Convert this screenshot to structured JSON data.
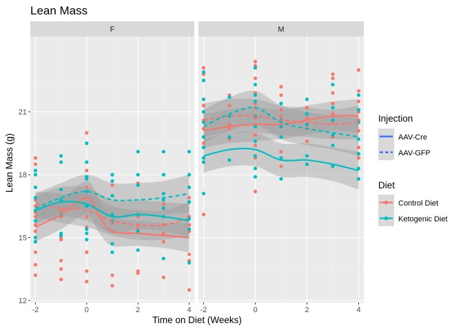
{
  "chart_data": {
    "type": "scatter",
    "title": "Lean Mass",
    "xlabel": "Time on Diet (Weeks)",
    "ylabel": "Lean Mass (g)",
    "xlim": [
      -2.2,
      4.2
    ],
    "ylim": [
      11.9,
      24.6
    ],
    "x_ticks": [
      -2,
      0,
      2,
      4
    ],
    "y_ticks": [
      12,
      15,
      18,
      21
    ],
    "grid": true,
    "facets": [
      "F",
      "M"
    ],
    "legend_position": "right",
    "legend_injection": {
      "title": "Injection",
      "items": [
        {
          "label": "AAV-Cre",
          "linetype": "solid"
        },
        {
          "label": "AAV-GFP",
          "linetype": "dashed"
        }
      ]
    },
    "legend_diet": {
      "title": "Diet",
      "items": [
        {
          "label": "Control Diet",
          "color": "#F8766D"
        },
        {
          "label": "Ketogenic Diet",
          "color": "#00BFC4"
        }
      ]
    },
    "series": [
      {
        "facet": "F",
        "diet": "Control Diet",
        "injection": "AAV-Cre",
        "color": "#F8766D",
        "x": [
          -2,
          -1,
          0,
          0.5,
          1,
          2,
          3,
          4
        ],
        "y": [
          15.5,
          16.1,
          16.9,
          16.0,
          15.3,
          15.2,
          15.1,
          15.0
        ],
        "band": [
          0.7,
          0.7,
          0.8,
          0.8,
          0.7,
          0.6,
          0.6,
          0.7
        ]
      },
      {
        "facet": "F",
        "diet": "Control Diet",
        "injection": "AAV-GFP",
        "color": "#F8766D",
        "x": [
          -2,
          -1,
          0,
          1,
          2,
          3,
          4
        ],
        "y": [
          16.6,
          16.4,
          16.3,
          15.8,
          15.6,
          15.6,
          15.9
        ],
        "band": [
          0.6,
          0.7,
          0.8,
          0.7,
          0.7,
          0.7,
          0.8
        ]
      },
      {
        "facet": "F",
        "diet": "Ketogenic Diet",
        "injection": "AAV-Cre",
        "color": "#00BFC4",
        "x": [
          -2,
          -1,
          0,
          1,
          2,
          3,
          4
        ],
        "y": [
          16.3,
          16.7,
          16.6,
          16.0,
          16.1,
          16.0,
          15.8
        ],
        "band": [
          0.7,
          0.7,
          0.8,
          0.8,
          0.7,
          0.7,
          0.8
        ]
      },
      {
        "facet": "F",
        "diet": "Ketogenic Diet",
        "injection": "AAV-GFP",
        "color": "#00BFC4",
        "x": [
          -2,
          -1,
          0,
          1,
          2,
          3,
          4
        ],
        "y": [
          16.4,
          16.9,
          17.2,
          16.8,
          16.8,
          16.9,
          17.1
        ],
        "band": [
          0.7,
          0.7,
          0.8,
          0.8,
          0.8,
          0.8,
          0.9
        ]
      },
      {
        "facet": "M",
        "diet": "Control Diet",
        "injection": "AAV-Cre",
        "color": "#F8766D",
        "x": [
          -2,
          -1,
          0,
          1,
          2,
          3,
          4
        ],
        "y": [
          20.1,
          20.3,
          20.4,
          20.4,
          20.6,
          20.8,
          20.8
        ],
        "band": [
          0.8,
          0.8,
          0.8,
          0.7,
          0.7,
          0.7,
          0.8
        ]
      },
      {
        "facet": "M",
        "diet": "Control Diet",
        "injection": "AAV-GFP",
        "color": "#F8766D",
        "x": [
          -2,
          -1,
          0,
          1,
          2,
          3,
          4
        ],
        "y": [
          20.6,
          20.8,
          20.8,
          20.6,
          20.5,
          20.4,
          20.5
        ],
        "band": [
          0.8,
          0.8,
          0.8,
          0.7,
          0.7,
          0.7,
          0.8
        ]
      },
      {
        "facet": "M",
        "diet": "Ketogenic Diet",
        "injection": "AAV-Cre",
        "color": "#00BFC4",
        "x": [
          -2,
          -1,
          0,
          1,
          2,
          3,
          4
        ],
        "y": [
          18.9,
          19.2,
          19.2,
          18.7,
          18.7,
          18.5,
          18.2
        ],
        "band": [
          0.8,
          0.8,
          0.8,
          0.8,
          0.8,
          0.8,
          0.9
        ]
      },
      {
        "facet": "M",
        "diet": "Ketogenic Diet",
        "injection": "AAV-GFP",
        "color": "#00BFC4",
        "x": [
          -2,
          -1,
          0,
          1,
          2,
          3,
          4
        ],
        "y": [
          20.3,
          20.9,
          21.2,
          20.5,
          20.2,
          20.0,
          19.8
        ],
        "band": [
          0.8,
          0.8,
          0.8,
          0.8,
          0.8,
          0.8,
          0.9
        ]
      }
    ],
    "points": [
      {
        "facet": "F",
        "diet": "Control Diet",
        "x": -2,
        "y": [
          18.8,
          18.5,
          16.8,
          16.5,
          16.2,
          16.0,
          15.6,
          15.3,
          14.3,
          13.7,
          13.2
        ]
      },
      {
        "facet": "F",
        "diet": "Ketogenic Diet",
        "x": -2,
        "y": [
          18.2,
          18.0,
          17.4,
          16.9,
          16.3,
          15.8,
          15.0,
          14.8
        ]
      },
      {
        "facet": "F",
        "diet": "Control Diet",
        "x": -1,
        "y": [
          16.3,
          16.0,
          15.0,
          14.9,
          13.9,
          13.5,
          13.0
        ]
      },
      {
        "facet": "F",
        "diet": "Ketogenic Diet",
        "x": -1,
        "y": [
          18.9,
          18.6,
          17.3,
          16.8,
          16.1,
          15.2,
          15.1
        ]
      },
      {
        "facet": "F",
        "diet": "Control Diet",
        "x": 0,
        "y": [
          20.0,
          18.2,
          17.4,
          16.0,
          15.5,
          14.3,
          13.4,
          12.9
        ]
      },
      {
        "facet": "F",
        "diet": "Ketogenic Diet",
        "x": 0,
        "y": [
          19.5,
          18.6,
          17.9,
          17.8,
          17.2,
          16.5,
          15.4,
          15.2,
          14.9
        ]
      },
      {
        "facet": "F",
        "diet": "Control Diet",
        "x": 1,
        "y": [
          18.0,
          17.5,
          15.7,
          14.7,
          13.2,
          12.7
        ]
      },
      {
        "facet": "F",
        "diet": "Ketogenic Diet",
        "x": 1,
        "y": [
          18.0,
          17.7,
          17.0,
          16.1,
          15.8,
          14.7,
          14.3
        ]
      },
      {
        "facet": "F",
        "diet": "Control Diet",
        "x": 2,
        "y": [
          17.6,
          16.0,
          15.6,
          15.4,
          13.4,
          13.3
        ]
      },
      {
        "facet": "F",
        "diet": "Ketogenic Diet",
        "x": 2,
        "y": [
          19.1,
          18.0,
          17.5,
          16.1,
          15.3,
          14.4
        ]
      },
      {
        "facet": "F",
        "diet": "Control Diet",
        "x": 3,
        "y": [
          16.6,
          15.6,
          15.2,
          14.8,
          13.1
        ]
      },
      {
        "facet": "F",
        "diet": "Ketogenic Diet",
        "x": 3,
        "y": [
          19.1,
          18.0,
          17.1,
          16.8,
          16.4,
          16.0,
          14.0
        ]
      },
      {
        "facet": "F",
        "diet": "Control Diet",
        "x": 4,
        "y": [
          16.9,
          16.0,
          15.6,
          15.3,
          14.2,
          13.9,
          12.5
        ]
      },
      {
        "facet": "F",
        "diet": "Ketogenic Diet",
        "x": 4,
        "y": [
          19.1,
          18.0,
          17.4,
          16.7,
          15.9,
          15.4,
          13.8
        ]
      },
      {
        "facet": "M",
        "diet": "Control Diet",
        "x": -2,
        "y": [
          23.1,
          22.8,
          21.3,
          20.6,
          20.2,
          19.8,
          19.5,
          18.6,
          16.1
        ]
      },
      {
        "facet": "M",
        "diet": "Ketogenic Diet",
        "x": -2,
        "y": [
          22.9,
          22.5,
          21.6,
          21.0,
          20.5,
          19.8,
          19.3,
          18.8,
          18.6,
          17.1
        ]
      },
      {
        "facet": "M",
        "diet": "Control Diet",
        "x": -1,
        "y": [
          21.8,
          21.3,
          20.4,
          20.2,
          19.7
        ]
      },
      {
        "facet": "M",
        "diet": "Ketogenic Diet",
        "x": -1,
        "y": [
          21.7,
          20.8,
          19.8,
          18.7
        ]
      },
      {
        "facet": "M",
        "diet": "Control Diet",
        "x": 0,
        "y": [
          23.4,
          23.2,
          22.6,
          21.9,
          21.4,
          21.2,
          20.7,
          20.4,
          19.9,
          19.4,
          18.8,
          17.2
        ]
      },
      {
        "facet": "M",
        "diet": "Ketogenic Diet",
        "x": 0,
        "y": [
          23.1,
          22.3,
          21.8,
          21.5,
          20.8,
          20.3,
          19.6,
          18.9,
          18.3,
          17.9
        ]
      },
      {
        "facet": "M",
        "diet": "Control Diet",
        "x": 1,
        "y": [
          22.2,
          21.8,
          21.1,
          20.8,
          20.4,
          19.8,
          19.1,
          18.4
        ]
      },
      {
        "facet": "M",
        "diet": "Ketogenic Diet",
        "x": 1,
        "y": [
          21.4,
          20.6,
          20.3,
          19.8,
          18.8,
          17.8
        ]
      },
      {
        "facet": "M",
        "diet": "Control Diet",
        "x": 2,
        "y": [
          21.2,
          20.7,
          20.2,
          19.6
        ]
      },
      {
        "facet": "M",
        "diet": "Ketogenic Diet",
        "x": 2,
        "y": [
          21.6,
          20.9,
          20.4,
          18.9,
          18.5
        ]
      },
      {
        "facet": "M",
        "diet": "Control Diet",
        "x": 3,
        "y": [
          22.8,
          22.6,
          21.9,
          21.4,
          20.9,
          20.5,
          19.8
        ]
      },
      {
        "facet": "M",
        "diet": "Ketogenic Diet",
        "x": 3,
        "y": [
          22.3,
          21.2,
          20.6,
          19.9,
          19.4,
          18.4
        ]
      },
      {
        "facet": "M",
        "diet": "Control Diet",
        "x": 4,
        "y": [
          23.0,
          22.0,
          21.5,
          21.0,
          20.6,
          20.1,
          19.3,
          18.8
        ]
      },
      {
        "facet": "M",
        "diet": "Ketogenic Diet",
        "x": 4,
        "y": [
          21.8,
          21.1,
          20.5,
          19.7,
          19.0,
          18.3,
          17.8
        ]
      }
    ]
  }
}
